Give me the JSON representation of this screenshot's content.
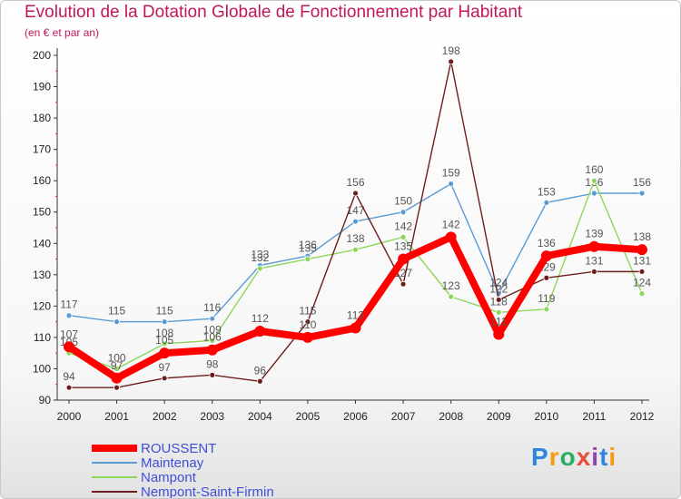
{
  "header": {
    "title": "Evolution de la Dotation Globale de Fonctionnement par Habitant",
    "subtitle": "(en € et par an)"
  },
  "logo": {
    "text": "Proxiti"
  },
  "chart_data": {
    "type": "line",
    "title": "Evolution de la Dotation Globale de Fonctionnement par Habitant",
    "subtitle": "(en € et par an)",
    "xlabel": "",
    "ylabel": "",
    "ylim": [
      90,
      200
    ],
    "yticks": [
      90,
      100,
      110,
      120,
      130,
      140,
      150,
      160,
      170,
      180,
      190,
      200
    ],
    "categories": [
      "2000",
      "2001",
      "2002",
      "2003",
      "2004",
      "2005",
      "2006",
      "2007",
      "2008",
      "2009",
      "2010",
      "2011",
      "2012"
    ],
    "grid": false,
    "legend": "bottom-left",
    "series": [
      {
        "name": "ROUSSENT",
        "color": "#ff0000",
        "values": [
          107,
          97,
          105,
          106,
          112,
          110,
          113,
          135,
          142,
          111,
          136,
          139,
          138
        ]
      },
      {
        "name": "Maintenay",
        "color": "#5a9bd4",
        "values": [
          117,
          115,
          115,
          116,
          133,
          136,
          147,
          150,
          159,
          124,
          153,
          156,
          156
        ]
      },
      {
        "name": "Nampont",
        "color": "#8ed65a",
        "values": [
          105,
          100,
          108,
          109,
          132,
          135,
          138,
          142,
          123,
          118,
          119,
          160,
          124
        ]
      },
      {
        "name": "Nempont-Saint-Firmin",
        "color": "#6e1d1d",
        "values": [
          94,
          94,
          97,
          98,
          96,
          115,
          156,
          127,
          198,
          122,
          129,
          131,
          131
        ]
      }
    ]
  }
}
